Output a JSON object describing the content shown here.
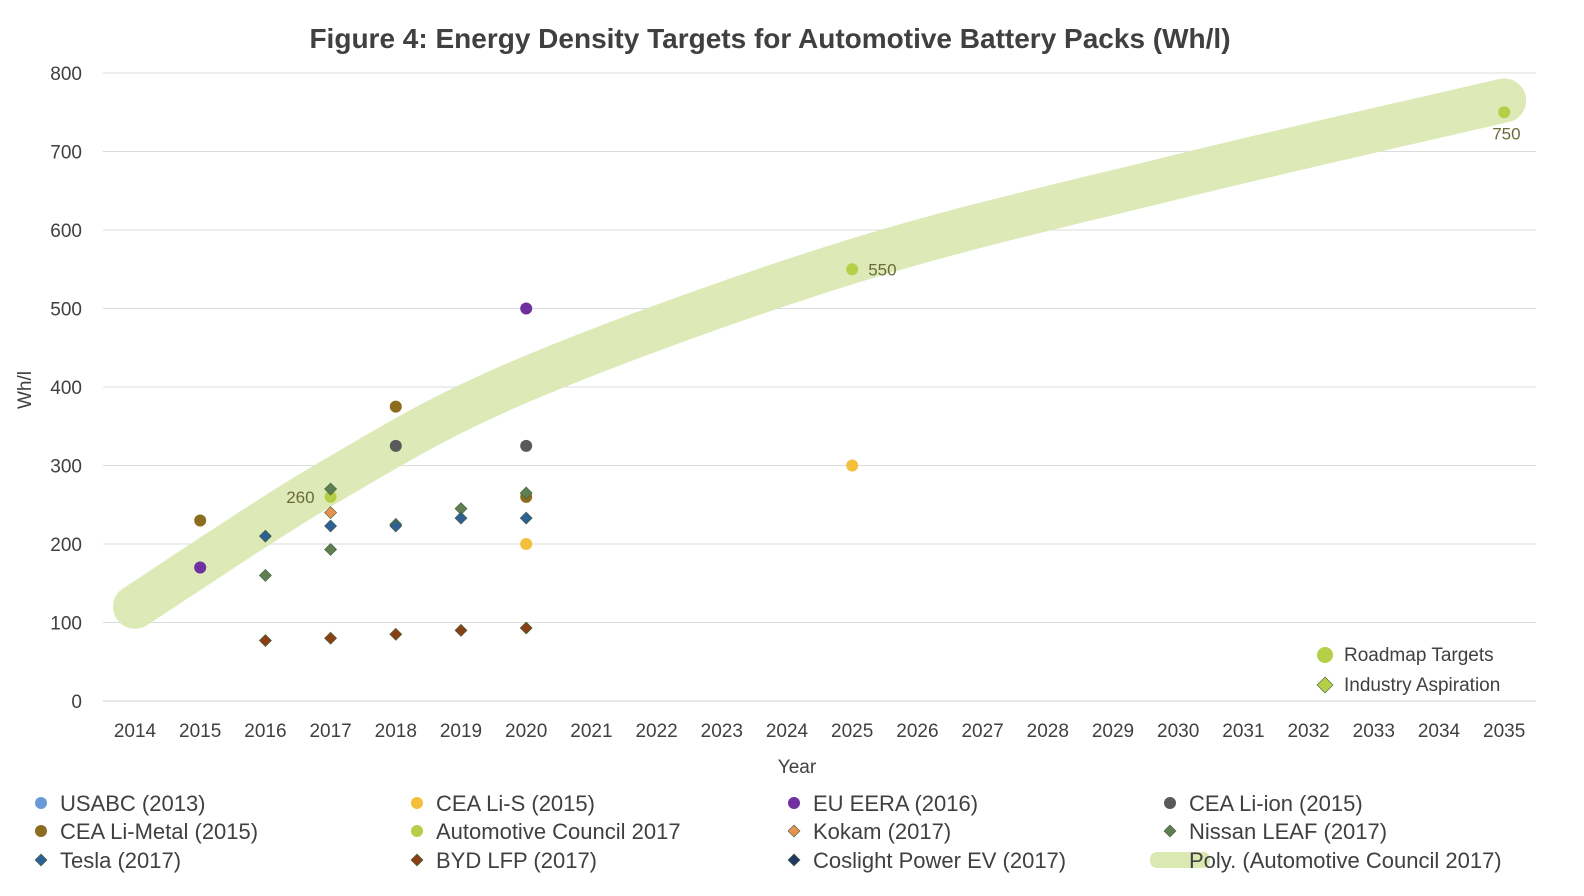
{
  "chart_data": {
    "type": "scatter",
    "title": "Figure 4: Energy Density Targets for Automotive Battery Packs (Wh/l)",
    "xlabel": "Year",
    "ylabel": "Wh/l",
    "xlim": [
      2014,
      2035
    ],
    "ylim": [
      0,
      800
    ],
    "x_ticks": [
      "2014",
      "2015",
      "2016",
      "2017",
      "2018",
      "2019",
      "2020",
      "2021",
      "2022",
      "2023",
      "2024",
      "2025",
      "2026",
      "2027",
      "2028",
      "2029",
      "2030",
      "2031",
      "2032",
      "2033",
      "2034",
      "2035"
    ],
    "y_ticks": [
      "0",
      "100",
      "200",
      "300",
      "400",
      "500",
      "600",
      "700",
      "800"
    ],
    "grid": "horizontal",
    "legend_position": "bottom",
    "series": [
      {
        "name": "USABC (2013)",
        "marker": "circle",
        "color": "#6a9ad6",
        "points": [
          {
            "x": 2015,
            "y": 170
          }
        ]
      },
      {
        "name": "CEA Li-S (2015)",
        "marker": "circle",
        "color": "#f4bf3a",
        "points": [
          {
            "x": 2020,
            "y": 200
          },
          {
            "x": 2025,
            "y": 300
          }
        ]
      },
      {
        "name": "EU EERA (2016)",
        "marker": "circle",
        "color": "#7030a0",
        "points": [
          {
            "x": 2015,
            "y": 170
          },
          {
            "x": 2020,
            "y": 500
          }
        ]
      },
      {
        "name": "CEA Li-ion (2015)",
        "marker": "circle",
        "color": "#595959",
        "points": [
          {
            "x": 2018,
            "y": 325
          },
          {
            "x": 2020,
            "y": 325
          }
        ]
      },
      {
        "name": "CEA Li-Metal (2015)",
        "marker": "circle",
        "color": "#8c6d1f",
        "points": [
          {
            "x": 2015,
            "y": 230
          },
          {
            "x": 2018,
            "y": 375
          },
          {
            "x": 2020,
            "y": 260
          }
        ]
      },
      {
        "name": "Automotive Council 2017",
        "marker": "circle",
        "color": "#b5cf48",
        "points": [
          {
            "x": 2017,
            "y": 260
          },
          {
            "x": 2025,
            "y": 550
          },
          {
            "x": 2035,
            "y": 750
          }
        ],
        "labels": [
          "260",
          "550",
          "750"
        ]
      },
      {
        "name": "Kokam (2017)",
        "marker": "diamond",
        "color": "#e8914f",
        "points": [
          {
            "x": 2017,
            "y": 240
          }
        ]
      },
      {
        "name": "Nissan LEAF (2017)",
        "marker": "diamond",
        "color": "#5f7f52",
        "points": [
          {
            "x": 2016,
            "y": 160
          },
          {
            "x": 2017,
            "y": 193
          },
          {
            "x": 2017,
            "y": 270
          },
          {
            "x": 2018,
            "y": 225
          },
          {
            "x": 2019,
            "y": 245
          },
          {
            "x": 2020,
            "y": 265
          }
        ]
      },
      {
        "name": "Tesla (2017)",
        "marker": "diamond",
        "color": "#2e6095",
        "points": [
          {
            "x": 2016,
            "y": 210
          },
          {
            "x": 2017,
            "y": 223
          },
          {
            "x": 2018,
            "y": 223
          },
          {
            "x": 2019,
            "y": 233
          },
          {
            "x": 2020,
            "y": 233
          }
        ]
      },
      {
        "name": "BYD LFP (2017)",
        "marker": "diamond",
        "color": "#8a4016",
        "points": [
          {
            "x": 2016,
            "y": 77
          },
          {
            "x": 2017,
            "y": 80
          },
          {
            "x": 2018,
            "y": 85
          },
          {
            "x": 2019,
            "y": 90
          },
          {
            "x": 2020,
            "y": 93
          }
        ]
      },
      {
        "name": "Coslight Power EV (2017)",
        "marker": "diamond",
        "color": "#1f3864",
        "points": []
      },
      {
        "name": "Poly. (Automotive Council 2017)",
        "marker": "trendline",
        "color": "#dbe8b2",
        "points": [
          {
            "x": 2014,
            "y": 120
          },
          {
            "x": 2017,
            "y": 280
          },
          {
            "x": 2020,
            "y": 410
          },
          {
            "x": 2025,
            "y": 560
          },
          {
            "x": 2030,
            "y": 668
          },
          {
            "x": 2035,
            "y": 765
          }
        ]
      }
    ],
    "inner_legend": {
      "position": "bottom-right",
      "items": [
        {
          "label": "Roadmap Targets",
          "marker": "circle",
          "color": "#b5cf48"
        },
        {
          "label": "Industry Aspiration",
          "marker": "diamond",
          "color": "#b5cf48"
        }
      ]
    }
  },
  "legend": {
    "items": [
      {
        "label": "USABC (2013)",
        "marker": "circle",
        "color": "#6a9ad6"
      },
      {
        "label": "CEA Li-S (2015)",
        "marker": "circle",
        "color": "#f4bf3a"
      },
      {
        "label": "EU EERA (2016)",
        "marker": "circle",
        "color": "#7030a0"
      },
      {
        "label": "CEA Li-ion (2015)",
        "marker": "circle",
        "color": "#595959"
      },
      {
        "label": "CEA Li-Metal (2015)",
        "marker": "circle",
        "color": "#8c6d1f"
      },
      {
        "label": "Automotive Council 2017",
        "marker": "circle",
        "color": "#b5cf48"
      },
      {
        "label": "Kokam (2017)",
        "marker": "diamond",
        "color": "#e8914f"
      },
      {
        "label": "Nissan LEAF (2017)",
        "marker": "diamond",
        "color": "#5f7f52"
      },
      {
        "label": "Tesla (2017)",
        "marker": "diamond",
        "color": "#2e6095"
      },
      {
        "label": "BYD LFP (2017)",
        "marker": "diamond",
        "color": "#8a4016"
      },
      {
        "label": "Coslight Power EV (2017)",
        "marker": "diamond",
        "color": "#1f3864"
      },
      {
        "label": "Poly. (Automotive Council 2017)",
        "marker": "line",
        "color": "#dbe8b2"
      }
    ]
  }
}
